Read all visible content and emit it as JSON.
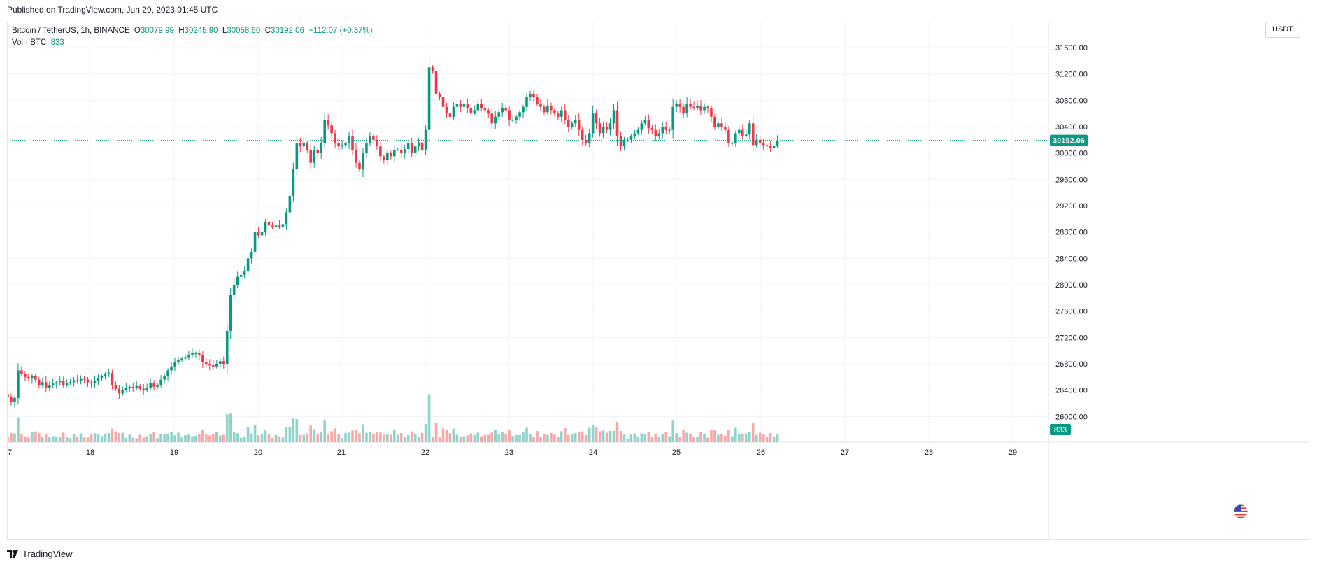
{
  "header": {
    "published": "Published on TradingView.com, Jun 29, 2023 01:45 UTC"
  },
  "legend": {
    "symbol": "Bitcoin / TetherUS, 1h, BINANCE",
    "o_label": "O",
    "o_value": "30079.99",
    "h_label": "H",
    "h_value": "30245.90",
    "l_label": "L",
    "l_value": "30058.60",
    "c_label": "C",
    "c_value": "30192.06",
    "change": "+112.07 (+0.37%)",
    "vol_label": "Vol · BTC",
    "vol_value": "833"
  },
  "currency": "USDT",
  "brand": "TradingView",
  "colors": {
    "up": "#089981",
    "down": "#f23645",
    "vol_up": "#8fd3ca",
    "vol_down": "#f7a9a7",
    "grid": "#f0f3fa",
    "text": "#131722"
  },
  "chart_data": {
    "type": "candlestick",
    "x_ticks": [
      "7",
      "18",
      "19",
      "20",
      "21",
      "22",
      "23",
      "24",
      "25",
      "26",
      "27",
      "28",
      "29"
    ],
    "y_ticks": [
      31600,
      31200,
      30800,
      30400,
      30000,
      29600,
      29200,
      28800,
      28400,
      28000,
      27600,
      27200,
      26800,
      26400,
      26000
    ],
    "y_tick_labels": [
      "31600.00",
      "31200.00",
      "30800.00",
      "30400.00",
      "30000.00",
      "29600.00",
      "29200.00",
      "28800.00",
      "28400.00",
      "28000.00",
      "27600.00",
      "27200.00",
      "26800.00",
      "26400.00",
      "26000.00"
    ],
    "ylim": [
      25700,
      31900
    ],
    "last_price": 30192.06,
    "last_price_label": "30192.06",
    "last_volume_label": "833",
    "close": [
      26300,
      26220,
      26280,
      26700,
      26650,
      26600,
      26580,
      26620,
      26560,
      26480,
      26520,
      26430,
      26470,
      26500,
      26520,
      26540,
      26480,
      26500,
      26520,
      26550,
      26540,
      26570,
      26560,
      26520,
      26510,
      26540,
      26580,
      26610,
      26640,
      26660,
      26480,
      26420,
      26350,
      26400,
      26430,
      26450,
      26440,
      26460,
      26420,
      26400,
      26440,
      26510,
      26450,
      26480,
      26560,
      26620,
      26700,
      26760,
      26820,
      26860,
      26880,
      26900,
      26940,
      26960,
      26960,
      26930,
      26830,
      26800,
      26780,
      26760,
      26800,
      26840,
      26800,
      27300,
      27850,
      28000,
      28120,
      28150,
      28200,
      28400,
      28500,
      28800,
      28750,
      28800,
      28950,
      28900,
      28870,
      28900,
      28880,
      28920,
      29100,
      29350,
      29750,
      30150,
      30100,
      30150,
      30050,
      29850,
      30050,
      30000,
      30150,
      30500,
      30420,
      30300,
      30150,
      30100,
      30120,
      30150,
      30250,
      30050,
      29850,
      29750,
      30000,
      30150,
      30250,
      30200,
      30100,
      29950,
      29900,
      30000,
      29950,
      30050,
      30050,
      30000,
      30060,
      30150,
      30000,
      30100,
      30160,
      30050,
      30350,
      31300,
      31250,
      30900,
      30850,
      30700,
      30600,
      30550,
      30700,
      30750,
      30700,
      30750,
      30680,
      30600,
      30650,
      30750,
      30680,
      30650,
      30600,
      30450,
      30550,
      30620,
      30680,
      30650,
      30500,
      30500,
      30550,
      30620,
      30700,
      30850,
      30900,
      30850,
      30750,
      30700,
      30620,
      30720,
      30650,
      30600,
      30550,
      30650,
      30500,
      30400,
      30450,
      30500,
      30350,
      30200,
      30150,
      30300,
      30600,
      30450,
      30300,
      30400,
      30350,
      30450,
      30650,
      30250,
      30100,
      30200,
      30200,
      30250,
      30300,
      30350,
      30450,
      30500,
      30380,
      30350,
      30250,
      30300,
      30400,
      30350,
      30350,
      30700,
      30750,
      30700,
      30600,
      30750,
      30700,
      30680,
      30720,
      30650,
      30700,
      30680,
      30550,
      30400,
      30450,
      30400,
      30350,
      30150,
      30150,
      30300,
      30350,
      30250,
      30280,
      30450,
      30120,
      30200,
      30150,
      30120,
      30100,
      30080,
      30110,
      30192
    ]
  }
}
